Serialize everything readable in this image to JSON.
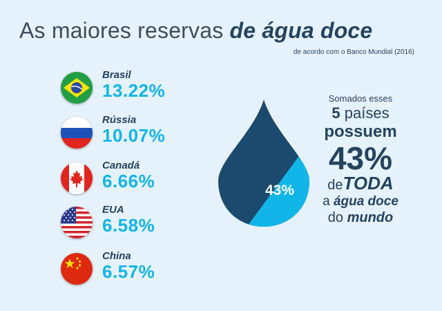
{
  "header": {
    "title_light": "As maiores reservas ",
    "title_bold": "de água doce",
    "subtitle": "de acordo com o Banco Mundial (2016)"
  },
  "countries": [
    {
      "name": "Brasil",
      "percent": "13.22%",
      "flag": "brazil-flag"
    },
    {
      "name": "Rússia",
      "percent": "10.07%",
      "flag": "russia-flag"
    },
    {
      "name": "Canadá",
      "percent": "6.66%",
      "flag": "canada-flag"
    },
    {
      "name": "EUA",
      "percent": "6.58%",
      "flag": "usa-flag"
    },
    {
      "name": "China",
      "percent": "6.57%",
      "flag": "china-flag"
    }
  ],
  "drop": {
    "label": "43%",
    "share": 0.43,
    "colors": {
      "dark": "#1c4a6e",
      "light": "#12b5e8"
    }
  },
  "summary": {
    "line1": "Somados esses",
    "count": "5",
    "line2_rest": " países",
    "line3": "possuem",
    "percent": "43%",
    "de": "de",
    "toda": "TODA",
    "a": "a ",
    "agua_doce": "água doce",
    "do": "do ",
    "mundo": "mundo"
  },
  "colors": {
    "background": "#e6f2fb",
    "accent": "#12b5e8",
    "navy": "#24435f"
  }
}
